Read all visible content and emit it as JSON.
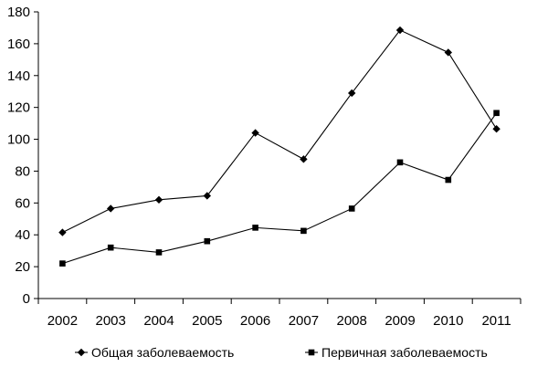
{
  "chart_data": {
    "type": "line",
    "title": "",
    "xlabel": "",
    "ylabel": "",
    "categories": [
      "2002",
      "2003",
      "2004",
      "2005",
      "2006",
      "2007",
      "2008",
      "2009",
      "2010",
      "2011"
    ],
    "ylim": [
      0,
      180
    ],
    "yticks": [
      0,
      20,
      40,
      60,
      80,
      100,
      120,
      140,
      160,
      180
    ],
    "grid": false,
    "legend_position": "bottom",
    "series": [
      {
        "name": "Общая заболеваемость",
        "marker": "diamond",
        "values": [
          41.5,
          56.5,
          62,
          64.5,
          104,
          87.5,
          129,
          168.5,
          154.5,
          106.5
        ]
      },
      {
        "name": "Первичная заболеваемость",
        "marker": "square",
        "values": [
          22,
          32,
          29,
          36,
          44.5,
          42.5,
          56.5,
          85.5,
          74.5,
          116.5
        ]
      }
    ],
    "colors": {
      "line": "#000000",
      "axis": "#000000"
    }
  }
}
